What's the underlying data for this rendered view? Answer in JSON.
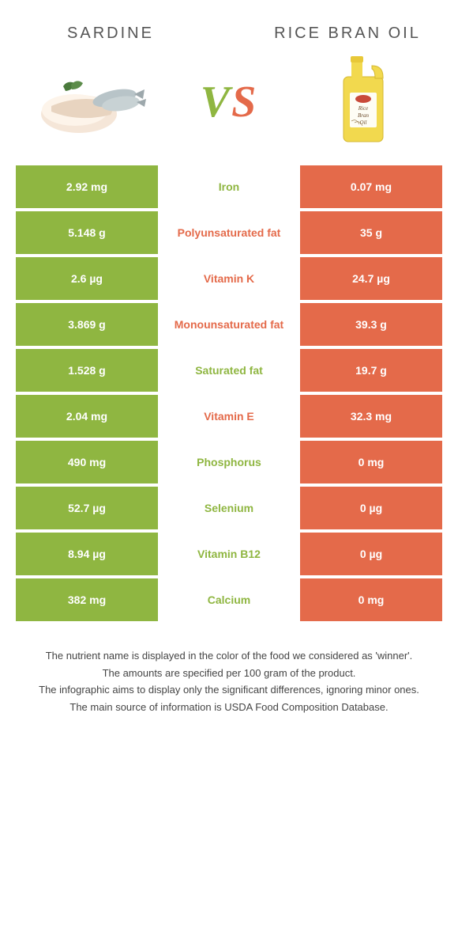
{
  "colors": {
    "left": "#8fb641",
    "right": "#e46a4a",
    "vs_left": "#8fb641",
    "vs_right": "#e46a4a",
    "bg": "#ffffff"
  },
  "header": {
    "left_title": "SARDINE",
    "right_title": "RICE BRAN OIL",
    "vs": "VS"
  },
  "rows": [
    {
      "nutrient": "Iron",
      "left": "2.92 mg",
      "right": "0.07 mg",
      "winner": "left"
    },
    {
      "nutrient": "Polyunsaturated fat",
      "left": "5.148 g",
      "right": "35 g",
      "winner": "right"
    },
    {
      "nutrient": "Vitamin K",
      "left": "2.6 µg",
      "right": "24.7 µg",
      "winner": "right"
    },
    {
      "nutrient": "Monounsaturated fat",
      "left": "3.869 g",
      "right": "39.3 g",
      "winner": "right"
    },
    {
      "nutrient": "Saturated fat",
      "left": "1.528 g",
      "right": "19.7 g",
      "winner": "left"
    },
    {
      "nutrient": "Vitamin E",
      "left": "2.04 mg",
      "right": "32.3 mg",
      "winner": "right"
    },
    {
      "nutrient": "Phosphorus",
      "left": "490 mg",
      "right": "0 mg",
      "winner": "left"
    },
    {
      "nutrient": "Selenium",
      "left": "52.7 µg",
      "right": "0 µg",
      "winner": "left"
    },
    {
      "nutrient": "Vitamin B12",
      "left": "8.94 µg",
      "right": "0 µg",
      "winner": "left"
    },
    {
      "nutrient": "Calcium",
      "left": "382 mg",
      "right": "0 mg",
      "winner": "left"
    }
  ],
  "footer": [
    "The nutrient name is displayed in the color of the food we considered as 'winner'.",
    "The amounts are specified per 100 gram of the product.",
    "The infographic aims to display only the significant differences, ignoring minor ones.",
    "The main source of information is USDA Food Composition Database."
  ]
}
